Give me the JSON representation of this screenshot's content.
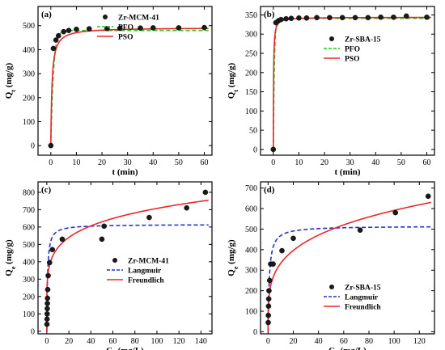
{
  "chart_data": [
    {
      "panel_label": "(a)",
      "type": "scatter",
      "xlabel": "t (min)",
      "ylabel": "Qt (mg/g)",
      "xlim": [
        -5,
        63
      ],
      "ylim": [
        -40,
        580
      ],
      "xticks": [
        0,
        10,
        20,
        30,
        40,
        50,
        60
      ],
      "yticks": [
        0,
        100,
        200,
        300,
        400,
        500
      ],
      "legend_position": "top-right",
      "points": {
        "name": "Zr-MCM-41",
        "x": [
          0,
          1,
          2,
          3,
          5,
          7,
          10,
          15,
          22,
          27,
          35,
          40,
          50,
          60
        ],
        "y": [
          0,
          405,
          440,
          458,
          475,
          480,
          485,
          487,
          488,
          489,
          490,
          491,
          491,
          492
        ]
      },
      "fits": [
        {
          "name": "PFO",
          "style": "dashed",
          "color": "#22cc22",
          "model": "pfo",
          "qe": 480,
          "k": 1.0
        },
        {
          "name": "PSO",
          "style": "solid",
          "color": "#e8282a",
          "model": "pso",
          "qe": 492,
          "k": 0.0045
        }
      ]
    },
    {
      "panel_label": "(b)",
      "type": "scatter",
      "xlabel": "t (min)",
      "ylabel": "Qt (mg/g)",
      "xlim": [
        -5,
        63
      ],
      "ylim": [
        -15,
        372
      ],
      "xticks": [
        0,
        10,
        20,
        30,
        40,
        50,
        60
      ],
      "yticks": [
        0,
        50,
        100,
        150,
        200,
        250,
        300,
        350
      ],
      "legend_position": "right",
      "points": {
        "name": "Zr-SBA-15",
        "x": [
          0,
          1,
          2,
          3,
          5,
          7,
          10,
          13,
          17,
          22,
          27,
          32,
          37,
          42,
          47,
          52,
          60
        ],
        "y": [
          0,
          330,
          335,
          338,
          340,
          341,
          342,
          342,
          343,
          343,
          343,
          343,
          343,
          344,
          344,
          347,
          344
        ]
      },
      "fits": [
        {
          "name": "PFO",
          "style": "dashed",
          "color": "#22cc22",
          "model": "pfo",
          "qe": 341,
          "k": 2.5
        },
        {
          "name": "PSO",
          "style": "solid",
          "color": "#e8282a",
          "model": "pso",
          "qe": 344,
          "k": 0.03
        }
      ]
    },
    {
      "panel_label": "(c)",
      "type": "scatter",
      "xlabel": "Ce (mg/L)",
      "ylabel": "Qe (mg/g)",
      "xlim": [
        -8,
        150
      ],
      "ylim": [
        -15,
        860
      ],
      "xticks": [
        0,
        20,
        40,
        60,
        80,
        100,
        120,
        140
      ],
      "yticks": [
        0,
        100,
        200,
        300,
        400,
        500,
        600,
        700,
        800
      ],
      "legend_position": "bottom-right",
      "points": {
        "name": "Zr-MCM-41",
        "x": [
          0.1,
          0.2,
          0.3,
          0.4,
          0.5,
          0.6,
          0.8,
          1.2,
          2.5,
          5,
          14,
          50,
          52,
          93,
          127,
          144
        ],
        "y": [
          40,
          70,
          100,
          130,
          160,
          190,
          240,
          320,
          395,
          470,
          530,
          530,
          605,
          655,
          710,
          800
        ]
      },
      "fits": [
        {
          "name": "Langmuir",
          "style": "dashed",
          "color": "#2233cc",
          "model": "langmuir",
          "qm": 615,
          "kl": 1.5
        },
        {
          "name": "Freundlich",
          "style": "solid",
          "color": "#e8282a",
          "model": "freundlich",
          "kf": 327,
          "n": 5.97
        }
      ]
    },
    {
      "panel_label": "(d)",
      "type": "scatter",
      "xlabel": "Ce (mg/L)",
      "ylabel": "Qe (mg/g)",
      "xlim": [
        -6,
        132
      ],
      "ylim": [
        -10,
        730
      ],
      "xticks": [
        0,
        20,
        40,
        60,
        80,
        100,
        120
      ],
      "yticks": [
        0,
        100,
        200,
        300,
        400,
        500,
        600,
        700
      ],
      "legend_position": "bottom-right",
      "points": {
        "name": "Zr-SBA-15",
        "x": [
          0.1,
          0.2,
          0.35,
          0.5,
          0.7,
          1.2,
          2,
          4,
          11,
          20,
          73,
          101,
          127
        ],
        "y": [
          45,
          80,
          125,
          160,
          200,
          250,
          330,
          330,
          395,
          455,
          495,
          580,
          660
        ]
      },
      "fits": [
        {
          "name": "Langmuir",
          "style": "dashed",
          "color": "#2233cc",
          "model": "langmuir",
          "qm": 515,
          "kl": 1.0
        },
        {
          "name": "Freundlich",
          "style": "solid",
          "color": "#e8282a",
          "model": "freundlich",
          "kf": 188,
          "n": 4.02
        }
      ]
    }
  ]
}
